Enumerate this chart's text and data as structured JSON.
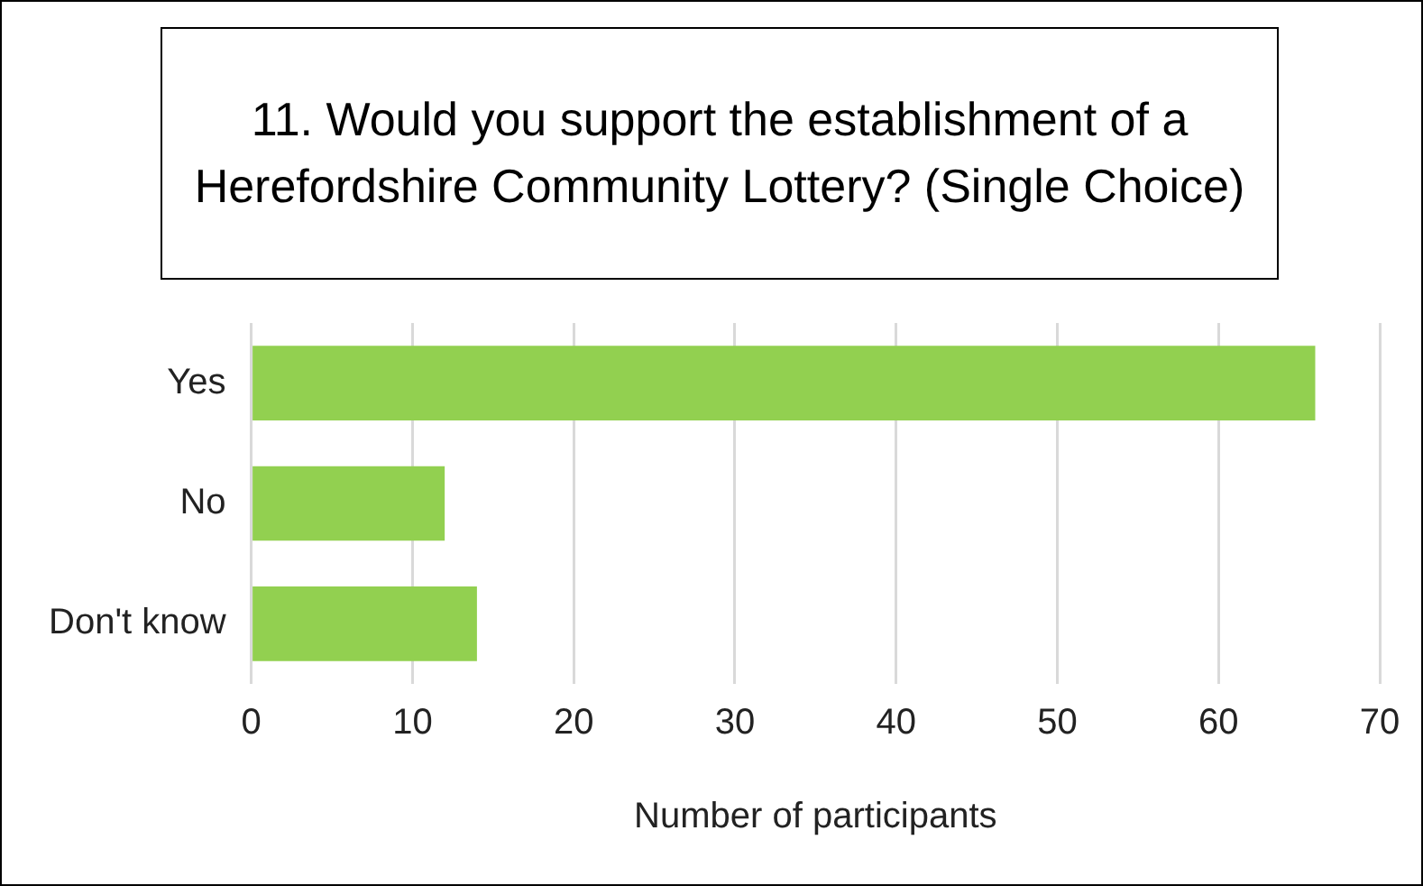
{
  "chart_data": {
    "type": "bar",
    "orientation": "horizontal",
    "title": "11. Would you support the establishment of a Herefordshire Community Lottery? (Single Choice)",
    "categories": [
      "Yes",
      "No",
      "Don't know"
    ],
    "values": [
      66,
      12,
      14
    ],
    "color": "#92d050",
    "xlabel": "Number of participants",
    "xlim": [
      0,
      70
    ],
    "xticks": [
      0,
      10,
      20,
      30,
      40,
      50,
      60,
      70
    ],
    "grid": "x",
    "legend": false
  }
}
